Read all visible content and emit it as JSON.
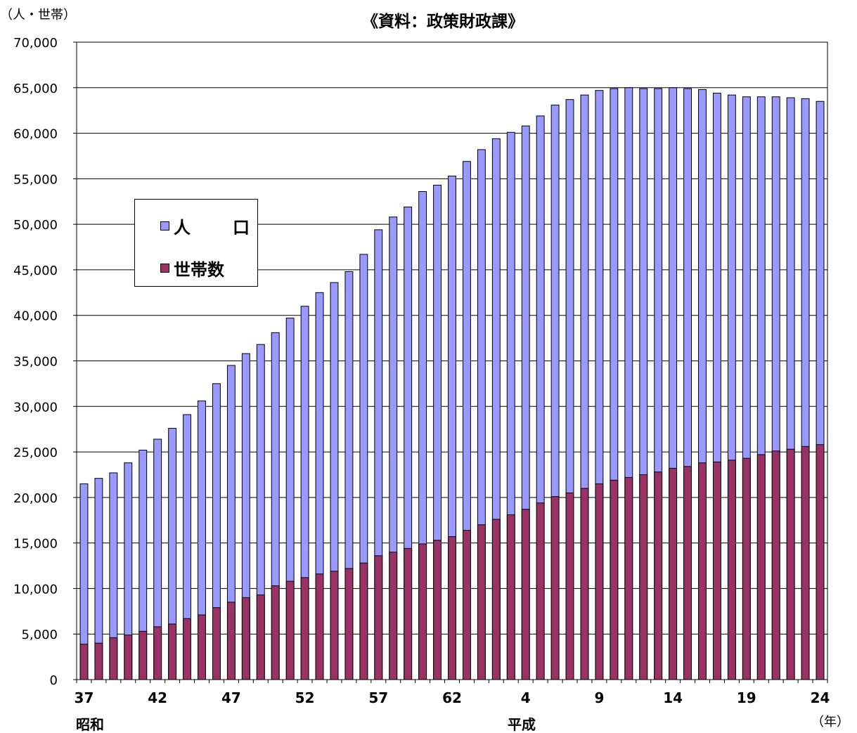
{
  "chart_data": {
    "type": "bar",
    "title": "《資料：政策財政課》",
    "ylabel": "（人・世帯）",
    "xlabel": "（年）",
    "era_labels": [
      "昭和",
      "平成"
    ],
    "ylim": [
      0,
      70000
    ],
    "yticks": [
      "0",
      "5,000",
      "10,000",
      "15,000",
      "20,000",
      "25,000",
      "30,000",
      "35,000",
      "40,000",
      "45,000",
      "50,000",
      "55,000",
      "60,000",
      "65,000",
      "70,000"
    ],
    "xtick_labels": [
      "37",
      "42",
      "47",
      "52",
      "57",
      "62",
      "4",
      "9",
      "14",
      "19",
      "24"
    ],
    "categories": [
      "S37",
      "S38",
      "S39",
      "S40",
      "S41",
      "S42",
      "S43",
      "S44",
      "S45",
      "S46",
      "S47",
      "S48",
      "S49",
      "S50",
      "S51",
      "S52",
      "S53",
      "S54",
      "S55",
      "S56",
      "S57",
      "S58",
      "S59",
      "S60",
      "S61",
      "S62",
      "S63",
      "H1",
      "H2",
      "H3",
      "H4",
      "H5",
      "H6",
      "H7",
      "H8",
      "H9",
      "H10",
      "H11",
      "H12",
      "H13",
      "H14",
      "H15",
      "H16",
      "H17",
      "H18",
      "H19",
      "H20",
      "H21",
      "H22",
      "H23",
      "H24"
    ],
    "series": [
      {
        "name": "人　口",
        "color": "#9999ff",
        "values": [
          21500,
          22100,
          22700,
          23800,
          25200,
          26400,
          27600,
          29100,
          30600,
          32500,
          34500,
          35800,
          36800,
          38100,
          39700,
          41000,
          42500,
          43600,
          44800,
          46700,
          49400,
          50800,
          51900,
          53600,
          54300,
          55300,
          56900,
          58200,
          59400,
          60100,
          60800,
          61900,
          63100,
          63700,
          64200,
          64700,
          64900,
          65000,
          64900,
          64900,
          65000,
          64900,
          64800,
          64400,
          64200,
          64000,
          64000,
          64000,
          63900,
          63800,
          63500
        ]
      },
      {
        "name": "世帯数",
        "color": "#993366",
        "values": [
          3900,
          4000,
          4600,
          4900,
          5300,
          5800,
          6100,
          6700,
          7100,
          7900,
          8500,
          9000,
          9300,
          10300,
          10800,
          11200,
          11600,
          11900,
          12200,
          12800,
          13600,
          14000,
          14400,
          14900,
          15300,
          15700,
          16400,
          17000,
          17600,
          18100,
          18700,
          19400,
          20100,
          20500,
          21000,
          21500,
          21900,
          22200,
          22500,
          22800,
          23200,
          23400,
          23800,
          23900,
          24100,
          24300,
          24700,
          25100,
          25300,
          25600,
          25800
        ]
      }
    ],
    "grid": "horizontal",
    "legend_position": "left-middle"
  }
}
